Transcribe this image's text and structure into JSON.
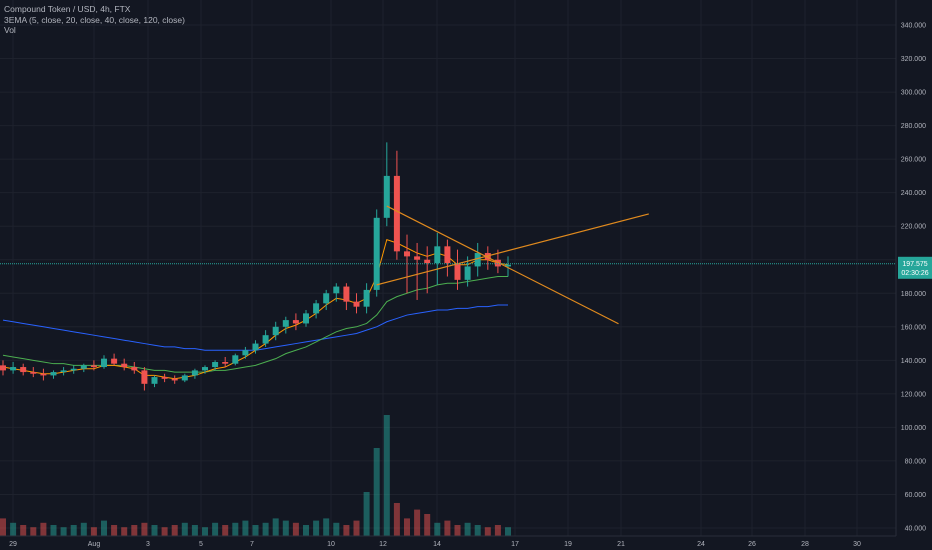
{
  "legend": {
    "symbol": "Compound Token / USD, 4h, FTX",
    "indicator": "3EMA (5, close, 20, close, 40, close, 120, close)",
    "volume": "Vol"
  },
  "price_axis": {
    "ticks": [
      "340.000",
      "320.000",
      "300.000",
      "280.000",
      "260.000",
      "240.000",
      "220.000",
      "200.000",
      "180.000",
      "160.000",
      "140.000",
      "120.000",
      "100.000",
      "80.000",
      "60.000",
      "40.000"
    ],
    "current_price": "197.575",
    "countdown": "02:30:26"
  },
  "time_axis": {
    "ticks": [
      "29",
      "Aug",
      "3",
      "5",
      "7",
      "10",
      "12",
      "14",
      "17",
      "19",
      "21",
      "24",
      "26",
      "28",
      "30"
    ]
  },
  "colors": {
    "background": "#131722",
    "up": "#26a69a",
    "down": "#ef5350",
    "ema_fast": "#ff9800",
    "ema_mid": "#4caf50",
    "ema_slow": "#2962ff",
    "trendline": "#e08a1e",
    "price_line": "#26a69a"
  },
  "chart_data": {
    "type": "candlestick",
    "title": "Compound Token / USD, 4h, FTX",
    "ylim": [
      35,
      350
    ],
    "candles_ohlc": [
      [
        137,
        140,
        131,
        134
      ],
      [
        134,
        139,
        132,
        136
      ],
      [
        136,
        138,
        131,
        133
      ],
      [
        133,
        136,
        130,
        132
      ],
      [
        132,
        135,
        128,
        131
      ],
      [
        131,
        134,
        129,
        133
      ],
      [
        133,
        136,
        131,
        134
      ],
      [
        134,
        137,
        132,
        135
      ],
      [
        135,
        138,
        133,
        137
      ],
      [
        137,
        140,
        134,
        136
      ],
      [
        136,
        143,
        135,
        141
      ],
      [
        141,
        144,
        137,
        138
      ],
      [
        138,
        141,
        134,
        136
      ],
      [
        136,
        139,
        132,
        134
      ],
      [
        134,
        136,
        122,
        126
      ],
      [
        126,
        131,
        124,
        130
      ],
      [
        130,
        132,
        127,
        129
      ],
      [
        129,
        131,
        126,
        128
      ],
      [
        128,
        132,
        127,
        131
      ],
      [
        131,
        135,
        129,
        134
      ],
      [
        134,
        137,
        132,
        136
      ],
      [
        136,
        140,
        134,
        139
      ],
      [
        139,
        142,
        136,
        138
      ],
      [
        138,
        144,
        137,
        143
      ],
      [
        143,
        148,
        141,
        146
      ],
      [
        146,
        152,
        144,
        150
      ],
      [
        150,
        158,
        148,
        155
      ],
      [
        155,
        163,
        152,
        160
      ],
      [
        160,
        166,
        156,
        164
      ],
      [
        164,
        168,
        158,
        162
      ],
      [
        162,
        170,
        160,
        168
      ],
      [
        168,
        176,
        165,
        174
      ],
      [
        174,
        182,
        170,
        180
      ],
      [
        180,
        186,
        175,
        184
      ],
      [
        184,
        186,
        170,
        175
      ],
      [
        175,
        180,
        168,
        172
      ],
      [
        172,
        186,
        168,
        182
      ],
      [
        182,
        230,
        178,
        225
      ],
      [
        225,
        270,
        220,
        250
      ],
      [
        250,
        265,
        200,
        205
      ],
      [
        205,
        215,
        180,
        202
      ],
      [
        202,
        210,
        176,
        200
      ],
      [
        200,
        208,
        180,
        198
      ],
      [
        198,
        216,
        185,
        208
      ],
      [
        208,
        212,
        190,
        198
      ],
      [
        198,
        206,
        182,
        188
      ],
      [
        188,
        202,
        184,
        196
      ],
      [
        196,
        210,
        190,
        204
      ],
      [
        204,
        208,
        194,
        200
      ],
      [
        200,
        206,
        192,
        196
      ],
      [
        196,
        202,
        190,
        197
      ]
    ],
    "volume": [
      8,
      6,
      5,
      4,
      6,
      5,
      4,
      5,
      6,
      4,
      7,
      5,
      4,
      5,
      6,
      5,
      4,
      5,
      6,
      5,
      4,
      6,
      5,
      6,
      7,
      5,
      6,
      8,
      7,
      6,
      5,
      7,
      8,
      6,
      5,
      7,
      20,
      40,
      55,
      15,
      8,
      12,
      10,
      6,
      7,
      5,
      6,
      5,
      4,
      5,
      4
    ],
    "ema_fast": [
      136,
      135,
      134,
      133,
      132,
      132,
      133,
      134,
      135,
      135,
      137,
      137,
      136,
      135,
      131,
      131,
      130,
      129,
      130,
      131,
      133,
      135,
      136,
      139,
      142,
      146,
      150,
      155,
      159,
      161,
      164,
      168,
      173,
      177,
      176,
      174,
      177,
      190,
      212,
      210,
      207,
      204,
      202,
      204,
      202,
      197,
      197,
      200,
      200,
      198,
      197
    ],
    "ema_mid": [
      143,
      142,
      141,
      140,
      139,
      138,
      138,
      137,
      137,
      137,
      137,
      137,
      137,
      136,
      135,
      134,
      134,
      133,
      133,
      133,
      133,
      134,
      134,
      135,
      136,
      137,
      139,
      141,
      144,
      146,
      148,
      151,
      154,
      157,
      159,
      160,
      162,
      167,
      175,
      178,
      180,
      182,
      183,
      185,
      186,
      186,
      187,
      188,
      189,
      190,
      190
    ],
    "ema_slow": [
      164,
      163,
      162,
      161,
      160,
      159,
      158,
      157,
      156,
      155,
      154,
      153,
      152,
      151,
      150,
      149,
      148,
      148,
      147,
      147,
      146,
      146,
      146,
      146,
      146,
      146,
      147,
      148,
      149,
      150,
      151,
      152,
      153,
      154,
      155,
      156,
      158,
      160,
      163,
      165,
      167,
      168,
      169,
      170,
      170,
      171,
      171,
      172,
      172,
      173,
      173
    ],
    "trendlines": [
      {
        "from": {
          "x": 37,
          "y": 185
        },
        "to": {
          "x": 58,
          "y": 218
        }
      },
      {
        "from": {
          "x": 38,
          "y": 232
        },
        "to": {
          "x": 55,
          "y": 180
        }
      }
    ]
  }
}
